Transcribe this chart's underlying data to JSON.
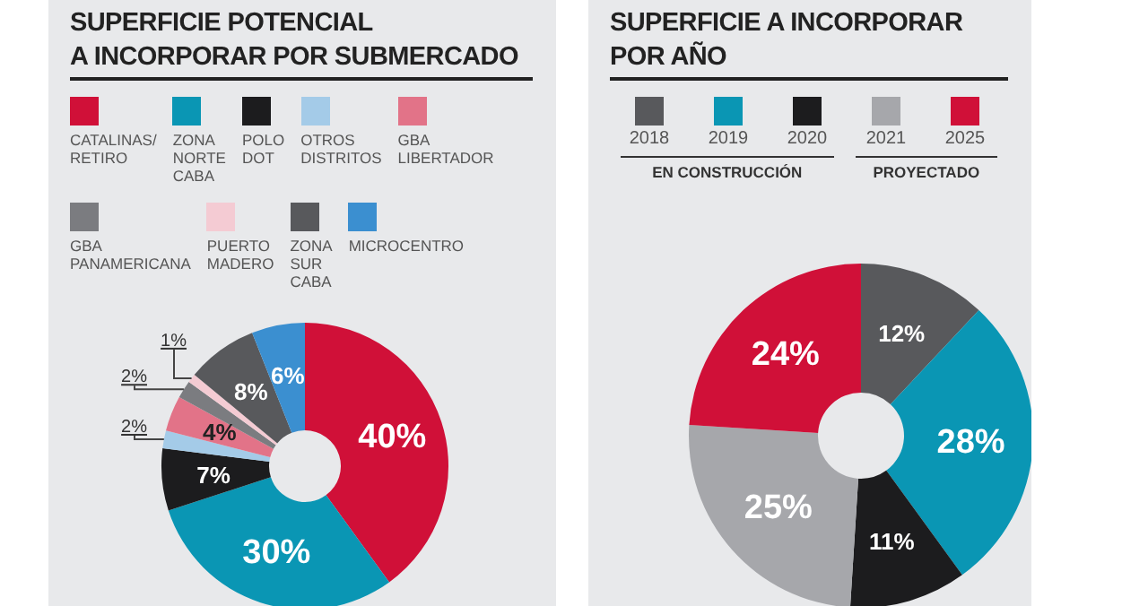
{
  "chart_data": [
    {
      "type": "donut",
      "title": "SUPERFICIE POTENCIAL\nA INCORPORAR POR SUBMERCADO",
      "categories": [
        "CATALINAS/ RETIRO",
        "ZONA NORTE CABA",
        "POLO DOT",
        "OTROS DISTRITOS",
        "GBA LIBERTADOR",
        "GBA PANAMERICANA",
        "PUERTO MADERO",
        "ZONA SUR CABA",
        "MICROCENTRO"
      ],
      "values": [
        40,
        30,
        7,
        2,
        4,
        2,
        1,
        8,
        6
      ],
      "colors": [
        "#d01038",
        "#0a96b4",
        "#1c1c1e",
        "#a4cbe8",
        "#e27388",
        "#7b7c80",
        "#f4cbd3",
        "#58595c",
        "#3b8fd0"
      ],
      "value_labels": [
        "40%",
        "30%",
        "7%",
        "2%",
        "4%",
        "2%",
        "1%",
        "8%",
        "6%"
      ],
      "legend": "top"
    },
    {
      "type": "donut",
      "title": "SUPERFICIE A INCORPORAR\nPOR AÑO",
      "categories": [
        "2018",
        "2019",
        "2020",
        "2021",
        "2025"
      ],
      "values": [
        12,
        28,
        11,
        25,
        24
      ],
      "colors": [
        "#58595c",
        "#0a96b4",
        "#1c1c1e",
        "#a6a7ab",
        "#d01038"
      ],
      "value_labels": [
        "12%",
        "28%",
        "11%",
        "25%",
        "24%"
      ],
      "legend": "top",
      "annotations": [
        "EN CONSTRUCCIÓN",
        "PROYECTADO"
      ]
    }
  ]
}
